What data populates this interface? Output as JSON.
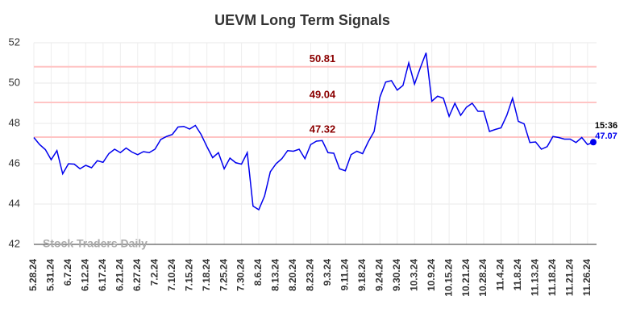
{
  "chart_data": {
    "type": "line",
    "title": "UEVM Long Term Signals",
    "categories": [
      "5.28.24",
      null,
      null,
      "5.31.24",
      null,
      null,
      "6.7.24",
      null,
      null,
      "6.12.24",
      null,
      null,
      "6.17.24",
      null,
      null,
      "6.21.24",
      null,
      null,
      "6.27.24",
      null,
      null,
      "7.2.24",
      null,
      null,
      "7.10.24",
      null,
      null,
      "7.15.24",
      null,
      null,
      "7.18.24",
      null,
      null,
      "7.25.24",
      null,
      null,
      "7.30.24",
      null,
      null,
      "8.6.24",
      null,
      null,
      "8.13.24",
      null,
      null,
      "8.20.24",
      null,
      null,
      "8.23.24",
      null,
      null,
      "9.3.24",
      null,
      null,
      "9.11.24",
      null,
      null,
      "9.18.24",
      null,
      null,
      "9.24.24",
      null,
      null,
      "9.30.24",
      null,
      null,
      "10.3.24",
      null,
      null,
      "10.9.24",
      null,
      null,
      "10.15.24",
      null,
      null,
      "10.21.24",
      null,
      null,
      "10.28.24",
      null,
      null,
      "11.4.24",
      null,
      null,
      "11.8.24",
      null,
      null,
      "11.13.24",
      null,
      null,
      "11.18.24",
      null,
      null,
      "11.21.24",
      null,
      null,
      "11.26.24",
      null
    ],
    "values": [
      47.3,
      46.95,
      46.7,
      46.2,
      46.65,
      45.5,
      46.0,
      45.98,
      45.75,
      45.92,
      45.8,
      46.15,
      46.07,
      46.5,
      46.72,
      46.55,
      46.78,
      46.58,
      46.45,
      46.6,
      46.55,
      46.72,
      47.2,
      47.35,
      47.45,
      47.82,
      47.85,
      47.72,
      47.9,
      47.45,
      46.85,
      46.3,
      46.55,
      45.75,
      46.28,
      46.05,
      45.98,
      46.55,
      43.9,
      43.72,
      44.4,
      45.6,
      46.0,
      46.25,
      46.65,
      46.62,
      46.72,
      46.25,
      46.95,
      47.12,
      47.15,
      46.55,
      46.52,
      45.75,
      45.65,
      46.45,
      46.62,
      46.5,
      47.1,
      47.6,
      49.3,
      50.05,
      50.12,
      49.65,
      49.88,
      51.0,
      49.95,
      50.75,
      51.5,
      49.1,
      49.35,
      49.25,
      48.35,
      49.0,
      48.4,
      48.8,
      49.0,
      48.6,
      48.6,
      47.6,
      47.7,
      47.78,
      48.4,
      49.25,
      48.1,
      47.98,
      47.05,
      47.08,
      46.72,
      46.85,
      47.35,
      47.3,
      47.22,
      47.22,
      47.05,
      47.3,
      46.95,
      47.07
    ],
    "color": "#0000ee",
    "ylim": [
      42,
      52
    ],
    "yticks": [
      42,
      44,
      46,
      48,
      50,
      52
    ],
    "grid": true,
    "levels": [
      50.81,
      49.04,
      47.32
    ],
    "level_color": "#ffc4c4",
    "level_label_color": "#8b0000",
    "last_time": "15:36",
    "watermark": "Stock Traders Daily"
  }
}
